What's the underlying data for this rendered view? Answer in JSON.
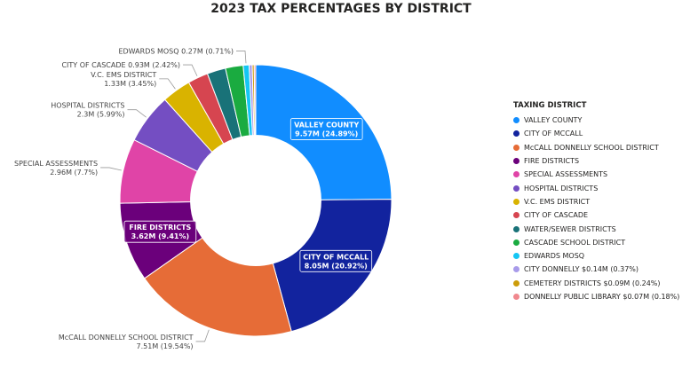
{
  "colors": [
    "#118DFF",
    "#12239E",
    "#E66C37",
    "#6B007B",
    "#E044A7",
    "#744EC2",
    "#D9B300",
    "#D64550",
    "#197278",
    "#1AAB40",
    "#15C6F4",
    "#A89BEA",
    "#CC9C0A",
    "#F0888E"
  ],
  "chart_data": {
    "type": "pie",
    "title": "2023 TAX PERCENTAGES BY DISTRICT",
    "legend_title": "TAXING DISTRICT",
    "legend_placement": "right",
    "hole": 0.48,
    "slices": [
      {
        "label": "VALLEY COUNTY",
        "value": 9.57,
        "percent": 24.89,
        "data_label": [
          "VALLEY COUNTY",
          "9.57M (24.89%)"
        ],
        "label_style": "inside"
      },
      {
        "label": "CITY OF MCCALL",
        "value": 8.05,
        "percent": 20.92,
        "data_label": [
          "CITY OF MCCALL",
          "8.05M (20.92%)"
        ],
        "label_style": "inside"
      },
      {
        "label": "McCALL DONNELLY SCHOOL DISTRICT",
        "value": 7.51,
        "percent": 19.54,
        "data_label": [
          "McCALL DONNELLY SCHOOL DISTRICT",
          "7.51M (19.54%)"
        ],
        "label_style": "outside"
      },
      {
        "label": "FIRE DISTRICTS",
        "value": 3.62,
        "percent": 9.41,
        "data_label": [
          "FIRE DISTRICTS",
          "3.62M (9.41%)"
        ],
        "label_style": "inside"
      },
      {
        "label": "SPECIAL ASSESSMENTS",
        "value": 2.96,
        "percent": 7.7,
        "data_label": [
          "SPECIAL ASSESSMENTS",
          "2.96M (7.7%)"
        ],
        "label_style": "outside"
      },
      {
        "label": "HOSPITAL DISTRICTS",
        "value": 2.3,
        "percent": 5.99,
        "data_label": [
          "HOSPITAL DISTRICTS",
          "2.3M (5.99%)"
        ],
        "label_style": "outside"
      },
      {
        "label": "V.C. EMS DISTRICT",
        "value": 1.33,
        "percent": 3.45,
        "data_label": [
          "V.C. EMS DISTRICT",
          "1.33M (3.45%)"
        ],
        "label_style": "outside"
      },
      {
        "label": "CITY OF CASCADE",
        "value": 0.93,
        "percent": 2.42,
        "data_label": [
          "CITY OF CASCADE 0.93M (2.42%)"
        ],
        "label_style": "outside"
      },
      {
        "label": "WATER/SEWER DISTRICTS",
        "value": 0.85,
        "percent": 2.2,
        "label_style": "none"
      },
      {
        "label": "CASCADE SCHOOL DISTRICT",
        "value": 0.81,
        "percent": 2.1,
        "label_style": "none"
      },
      {
        "label": "EDWARDS MOSQ",
        "value": 0.27,
        "percent": 0.71,
        "data_label": [
          "EDWARDS MOSQ 0.27M (0.71%)"
        ],
        "label_style": "outside"
      },
      {
        "label": "CITY DONNELLY $0.14M (0.37%)",
        "value": 0.14,
        "percent": 0.37,
        "label_style": "none"
      },
      {
        "label": "CEMETERY DISTRICTS $0.09M (0.24%)",
        "value": 0.09,
        "percent": 0.24,
        "label_style": "none"
      },
      {
        "label": "DONNELLY PUBLIC LIBRARY $0.07M (0.18%)",
        "value": 0.07,
        "percent": 0.18,
        "label_style": "none"
      }
    ]
  }
}
